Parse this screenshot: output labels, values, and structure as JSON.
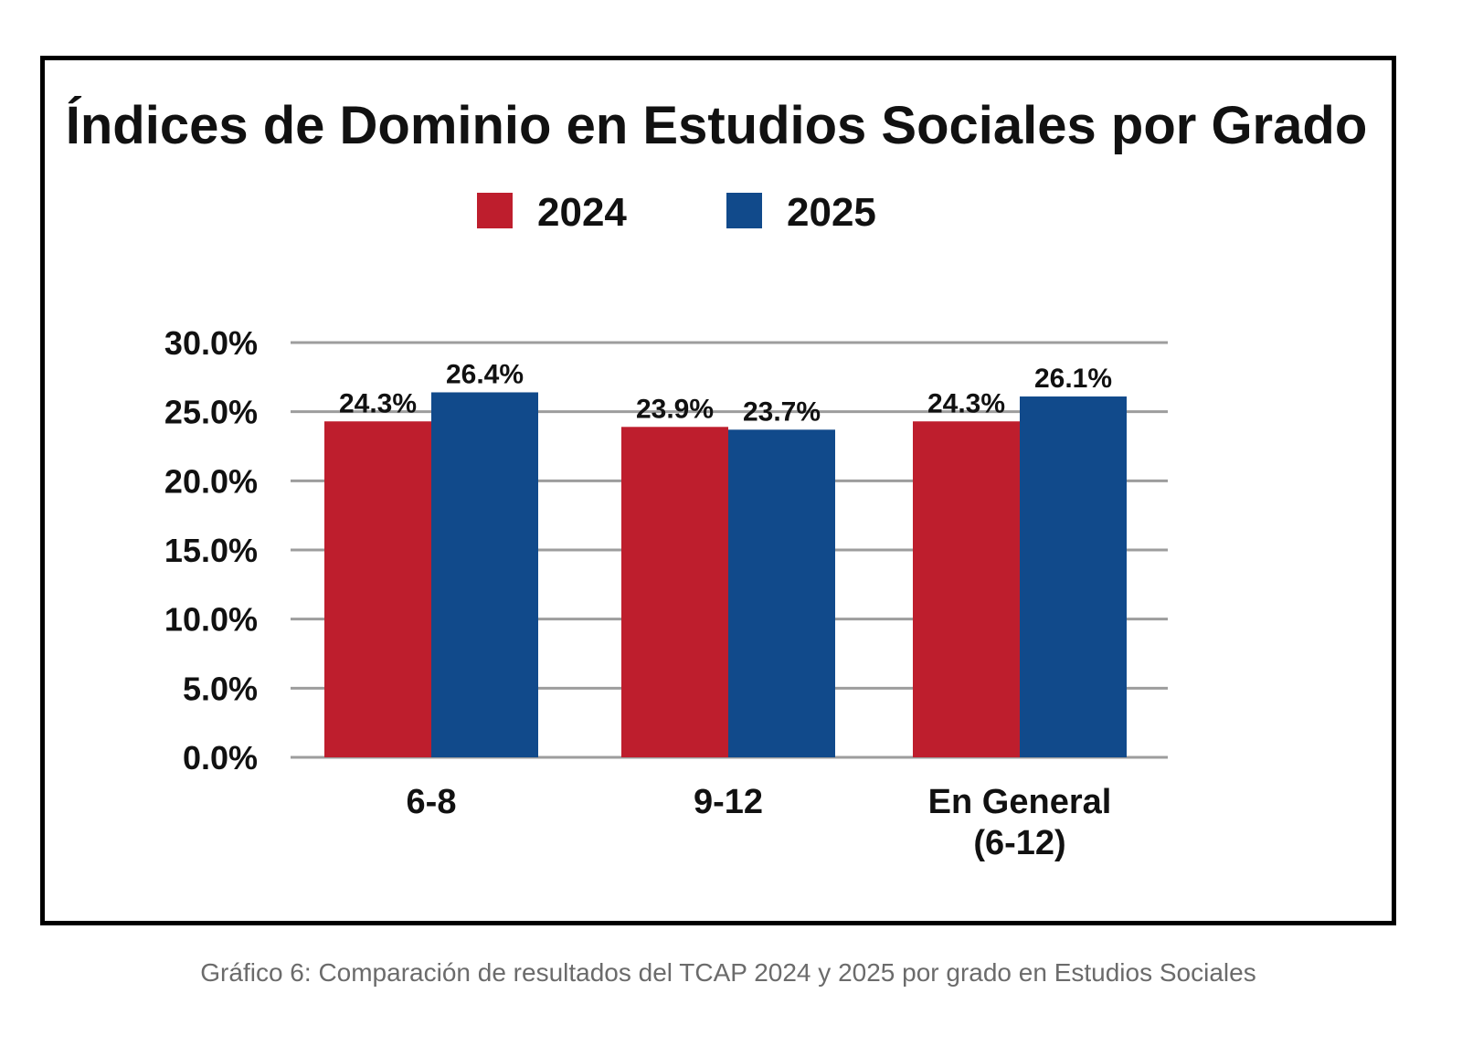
{
  "chart_data": {
    "type": "bar",
    "title": "Índices de Dominio en Estudios Sociales por Grado",
    "categories": [
      "6-8",
      "9-12",
      "En General\n(6-12)"
    ],
    "series": [
      {
        "name": "2024",
        "color": "#be1e2d",
        "values": [
          24.3,
          23.9,
          24.3
        ],
        "labels": [
          "24.3%",
          "23.9%",
          "24.3%"
        ]
      },
      {
        "name": "2025",
        "color": "#114a8b",
        "values": [
          26.4,
          23.7,
          26.1
        ],
        "labels": [
          "26.4%",
          "23.7%",
          "26.1%"
        ]
      }
    ],
    "yticks": [
      0,
      5,
      10,
      15,
      20,
      25,
      30
    ],
    "ytick_labels": [
      "0.0%",
      "5.0%",
      "10.0%",
      "15.0%",
      "20.0%",
      "25.0%",
      "30.0%"
    ],
    "ylim": [
      0,
      30
    ],
    "xlabel": "",
    "ylabel": "",
    "grid": true,
    "legend_position": "top-center"
  },
  "caption": "Gráfico 6: Comparación de resultados del TCAP 2024 y 2025 por grado en Estudios Sociales",
  "colors": {
    "grid": "#9d9d9d",
    "frame": "#000000",
    "caption": "#6b6b6b"
  }
}
